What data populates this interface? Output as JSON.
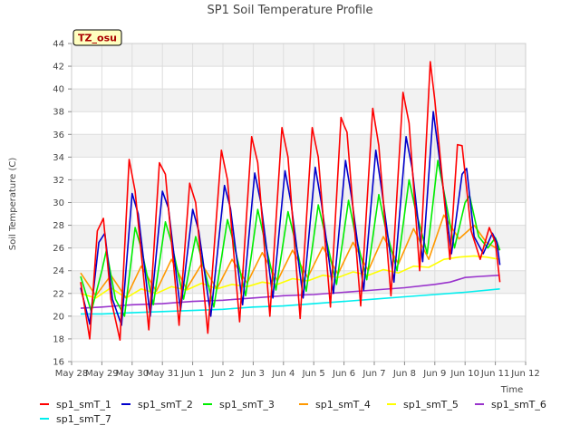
{
  "chart_data": {
    "type": "line",
    "title": "SP1 Soil Temperature Profile",
    "xlabel": "Time",
    "ylabel": "Soil Temperature (C)",
    "annotation": "TZ_osu",
    "ylim": [
      16,
      44
    ],
    "yticks": [
      16,
      18,
      20,
      22,
      24,
      26,
      28,
      30,
      32,
      34,
      36,
      38,
      40,
      42,
      44
    ],
    "xlim": [
      0,
      15
    ],
    "xtick_labels": [
      "May 28",
      "May 29",
      "May 30",
      "May 31",
      "Jun 1",
      "Jun 2",
      "Jun 3",
      "Jun 4",
      "Jun 5",
      "Jun 6",
      "Jun 7",
      "Jun 8",
      "Jun 9",
      "Jun 10",
      "Jun 11",
      "Jun 12"
    ],
    "grid": true,
    "legend_position": "bottom",
    "series": [
      {
        "name": "sp1_smT_1",
        "color": "#ff0000",
        "values": [
          [
            0.3,
            23.0
          ],
          [
            0.6,
            18.0
          ],
          [
            0.85,
            27.5
          ],
          [
            1.05,
            28.6
          ],
          [
            1.3,
            21.5
          ],
          [
            1.6,
            17.9
          ],
          [
            1.9,
            33.8
          ],
          [
            2.1,
            31.0
          ],
          [
            2.55,
            18.8
          ],
          [
            2.9,
            33.5
          ],
          [
            3.1,
            32.5
          ],
          [
            3.55,
            19.2
          ],
          [
            3.9,
            31.7
          ],
          [
            4.1,
            30.0
          ],
          [
            4.5,
            18.5
          ],
          [
            4.95,
            34.6
          ],
          [
            5.15,
            32.0
          ],
          [
            5.55,
            19.5
          ],
          [
            5.95,
            35.8
          ],
          [
            6.15,
            33.5
          ],
          [
            6.55,
            20.0
          ],
          [
            6.95,
            36.6
          ],
          [
            7.15,
            34.0
          ],
          [
            7.55,
            19.8
          ],
          [
            7.95,
            36.6
          ],
          [
            8.15,
            34.0
          ],
          [
            8.55,
            20.8
          ],
          [
            8.9,
            37.5
          ],
          [
            9.0,
            36.8
          ],
          [
            9.1,
            36.2
          ],
          [
            9.55,
            20.9
          ],
          [
            9.95,
            38.3
          ],
          [
            10.15,
            35.0
          ],
          [
            10.55,
            21.8
          ],
          [
            10.95,
            39.7
          ],
          [
            11.15,
            37.0
          ],
          [
            11.5,
            24.0
          ],
          [
            11.85,
            42.4
          ],
          [
            12.0,
            39.0
          ],
          [
            12.5,
            25.0
          ],
          [
            12.75,
            35.1
          ],
          [
            12.9,
            35.0
          ],
          [
            13.2,
            27.5
          ],
          [
            13.5,
            25.0
          ],
          [
            13.8,
            27.8
          ],
          [
            14.0,
            26.5
          ],
          [
            14.15,
            23.0
          ]
        ]
      },
      {
        "name": "sp1_smT_2",
        "color": "#0000cc",
        "values": [
          [
            0.3,
            22.5
          ],
          [
            0.6,
            19.3
          ],
          [
            0.9,
            26.5
          ],
          [
            1.1,
            27.3
          ],
          [
            1.35,
            21.5
          ],
          [
            1.65,
            19.2
          ],
          [
            2.0,
            30.8
          ],
          [
            2.2,
            29.0
          ],
          [
            2.6,
            20.0
          ],
          [
            3.0,
            31.0
          ],
          [
            3.2,
            29.5
          ],
          [
            3.6,
            20.5
          ],
          [
            4.0,
            29.4
          ],
          [
            4.2,
            27.5
          ],
          [
            4.6,
            20.0
          ],
          [
            5.05,
            31.5
          ],
          [
            5.25,
            29.5
          ],
          [
            5.65,
            21.0
          ],
          [
            6.05,
            32.6
          ],
          [
            6.25,
            30.0
          ],
          [
            6.65,
            21.6
          ],
          [
            7.05,
            32.8
          ],
          [
            7.25,
            30.0
          ],
          [
            7.65,
            21.6
          ],
          [
            8.05,
            33.1
          ],
          [
            8.25,
            30.0
          ],
          [
            8.65,
            22.0
          ],
          [
            9.05,
            33.7
          ],
          [
            9.25,
            30.5
          ],
          [
            9.65,
            22.3
          ],
          [
            10.05,
            34.6
          ],
          [
            10.25,
            31.0
          ],
          [
            10.65,
            23.0
          ],
          [
            11.05,
            35.8
          ],
          [
            11.25,
            33.0
          ],
          [
            11.6,
            24.8
          ],
          [
            11.95,
            38.0
          ],
          [
            12.1,
            35.0
          ],
          [
            12.55,
            25.5
          ],
          [
            12.9,
            32.5
          ],
          [
            13.05,
            33.0
          ],
          [
            13.3,
            27.0
          ],
          [
            13.6,
            25.5
          ],
          [
            13.9,
            27.3
          ],
          [
            14.05,
            26.5
          ],
          [
            14.15,
            24.5
          ]
        ]
      },
      {
        "name": "sp1_smT_3",
        "color": "#00ee00",
        "values": [
          [
            0.3,
            23.5
          ],
          [
            0.65,
            20.4
          ],
          [
            1.0,
            24.0
          ],
          [
            1.15,
            25.8
          ],
          [
            1.45,
            21.5
          ],
          [
            1.75,
            20.0
          ],
          [
            2.1,
            27.8
          ],
          [
            2.3,
            26.0
          ],
          [
            2.7,
            21.0
          ],
          [
            3.1,
            28.3
          ],
          [
            3.3,
            26.5
          ],
          [
            3.7,
            21.5
          ],
          [
            4.1,
            27.0
          ],
          [
            4.3,
            25.0
          ],
          [
            4.7,
            20.8
          ],
          [
            5.15,
            28.5
          ],
          [
            5.35,
            26.5
          ],
          [
            5.75,
            21.8
          ],
          [
            6.15,
            29.4
          ],
          [
            6.35,
            27.0
          ],
          [
            6.75,
            22.3
          ],
          [
            7.15,
            29.2
          ],
          [
            7.35,
            27.0
          ],
          [
            7.75,
            22.2
          ],
          [
            8.15,
            29.8
          ],
          [
            8.35,
            27.5
          ],
          [
            8.75,
            22.8
          ],
          [
            9.15,
            30.2
          ],
          [
            9.35,
            27.5
          ],
          [
            9.75,
            23.2
          ],
          [
            10.15,
            30.7
          ],
          [
            10.35,
            28.0
          ],
          [
            10.75,
            24.0
          ],
          [
            11.15,
            32.0
          ],
          [
            11.35,
            29.5
          ],
          [
            11.75,
            25.5
          ],
          [
            12.1,
            33.7
          ],
          [
            12.3,
            31.0
          ],
          [
            12.65,
            26.0
          ],
          [
            13.0,
            30.0
          ],
          [
            13.15,
            30.6
          ],
          [
            13.45,
            27.0
          ],
          [
            13.75,
            26.0
          ],
          [
            14.0,
            26.9
          ],
          [
            14.15,
            25.8
          ]
        ]
      },
      {
        "name": "sp1_smT_4",
        "color": "#ff9900",
        "values": [
          [
            0.3,
            23.8
          ],
          [
            0.8,
            21.8
          ],
          [
            1.3,
            23.6
          ],
          [
            1.8,
            21.6
          ],
          [
            2.3,
            24.4
          ],
          [
            2.8,
            22.2
          ],
          [
            3.3,
            25.0
          ],
          [
            3.8,
            22.4
          ],
          [
            4.3,
            24.6
          ],
          [
            4.8,
            22.4
          ],
          [
            5.3,
            25.0
          ],
          [
            5.8,
            22.9
          ],
          [
            6.3,
            25.6
          ],
          [
            6.8,
            23.1
          ],
          [
            7.3,
            25.8
          ],
          [
            7.8,
            23.4
          ],
          [
            8.3,
            26.1
          ],
          [
            8.8,
            23.7
          ],
          [
            9.3,
            26.5
          ],
          [
            9.8,
            24.0
          ],
          [
            10.3,
            27.0
          ],
          [
            10.8,
            24.6
          ],
          [
            11.3,
            27.7
          ],
          [
            11.8,
            25.0
          ],
          [
            12.3,
            28.9
          ],
          [
            12.8,
            26.8
          ],
          [
            13.3,
            28.0
          ],
          [
            13.7,
            26.5
          ],
          [
            14.15,
            25.8
          ]
        ]
      },
      {
        "name": "sp1_smT_5",
        "color": "#ffff00",
        "values": [
          [
            0.3,
            22.0
          ],
          [
            0.8,
            21.6
          ],
          [
            1.3,
            22.5
          ],
          [
            1.8,
            21.6
          ],
          [
            2.3,
            22.4
          ],
          [
            2.8,
            22.0
          ],
          [
            3.3,
            22.6
          ],
          [
            3.8,
            22.3
          ],
          [
            4.3,
            22.9
          ],
          [
            4.8,
            22.4
          ],
          [
            5.3,
            22.8
          ],
          [
            5.8,
            22.6
          ],
          [
            6.3,
            23.0
          ],
          [
            6.8,
            22.8
          ],
          [
            7.3,
            23.3
          ],
          [
            7.8,
            23.1
          ],
          [
            8.3,
            23.6
          ],
          [
            8.8,
            23.4
          ],
          [
            9.3,
            23.9
          ],
          [
            9.8,
            23.6
          ],
          [
            10.3,
            24.1
          ],
          [
            10.8,
            23.8
          ],
          [
            11.3,
            24.4
          ],
          [
            11.8,
            24.3
          ],
          [
            12.3,
            25.0
          ],
          [
            12.8,
            25.2
          ],
          [
            13.3,
            25.3
          ],
          [
            13.7,
            25.2
          ],
          [
            14.15,
            25.0
          ]
        ]
      },
      {
        "name": "sp1_smT_6",
        "color": "#9933cc",
        "values": [
          [
            0.3,
            20.7
          ],
          [
            1.0,
            20.8
          ],
          [
            2.0,
            21.0
          ],
          [
            3.0,
            21.1
          ],
          [
            4.0,
            21.3
          ],
          [
            5.0,
            21.4
          ],
          [
            6.0,
            21.6
          ],
          [
            7.0,
            21.8
          ],
          [
            8.0,
            21.9
          ],
          [
            9.0,
            22.1
          ],
          [
            10.0,
            22.3
          ],
          [
            11.0,
            22.5
          ],
          [
            12.0,
            22.8
          ],
          [
            12.5,
            23.0
          ],
          [
            13.0,
            23.4
          ],
          [
            13.5,
            23.5
          ],
          [
            14.15,
            23.6
          ]
        ]
      },
      {
        "name": "sp1_smT_7",
        "color": "#00eeee",
        "values": [
          [
            0.3,
            20.2
          ],
          [
            1.0,
            20.2
          ],
          [
            2.0,
            20.3
          ],
          [
            3.0,
            20.4
          ],
          [
            4.0,
            20.5
          ],
          [
            5.0,
            20.6
          ],
          [
            6.0,
            20.8
          ],
          [
            7.0,
            20.9
          ],
          [
            8.0,
            21.1
          ],
          [
            9.0,
            21.3
          ],
          [
            10.0,
            21.5
          ],
          [
            11.0,
            21.7
          ],
          [
            12.0,
            21.9
          ],
          [
            13.0,
            22.1
          ],
          [
            14.15,
            22.4
          ]
        ]
      }
    ]
  }
}
